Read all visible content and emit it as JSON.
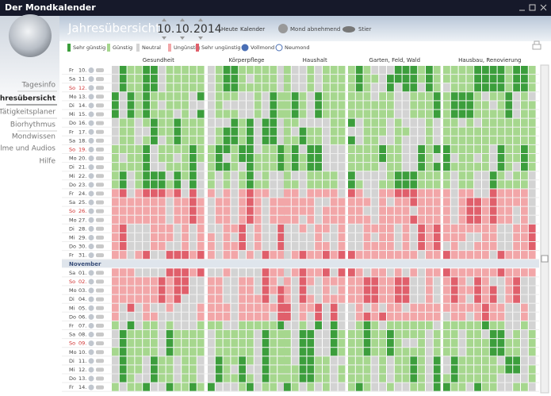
{
  "window_title": "Der Mondkalender",
  "nav": [
    "Tagesinfo",
    "Jahresübersicht",
    "Tätigkeitsplaner",
    "Biorhythmus",
    "Mondwissen",
    "Filme und Audios",
    "Hilfe"
  ],
  "header": {
    "title": "Jahresübersicht",
    "day": "10.",
    "month": "10.",
    "year": "2014",
    "today": "Heute",
    "calendar": "Kalender",
    "moon": "Mond abnehmend",
    "sign": "Stier"
  },
  "legend": [
    {
      "label": "Sehr günstig",
      "color": "#3c9e3c"
    },
    {
      "label": "Günstig",
      "color": "#a6d78e"
    },
    {
      "label": "Neutral",
      "color": "#d3d3d3"
    },
    {
      "label": "Ungünstig",
      "color": "#f2a6a8"
    },
    {
      "label": "Sehr ungünstig",
      "color": "#e05f6b"
    },
    {
      "label": "Vollmond",
      "color": "#4a6fb5"
    },
    {
      "label": "Neumond",
      "color": "#ffffff"
    }
  ],
  "columns": [
    "Gesundheit",
    "Körperpflege",
    "Haushalt",
    "Garten, Feld, Wald",
    "Hausbau, Renovierung"
  ],
  "days_a": [
    {
      "wd": "Fr",
      "d": "10."
    },
    {
      "wd": "Sa",
      "d": "11."
    },
    {
      "wd": "So",
      "d": "12."
    },
    {
      "wd": "Mo",
      "d": "13."
    },
    {
      "wd": "Di",
      "d": "14."
    },
    {
      "wd": "Mi",
      "d": "15."
    },
    {
      "wd": "Do",
      "d": "16."
    },
    {
      "wd": "Fr",
      "d": "17."
    },
    {
      "wd": "Sa",
      "d": "18."
    },
    {
      "wd": "So",
      "d": "19."
    },
    {
      "wd": "Mo",
      "d": "20."
    },
    {
      "wd": "Di",
      "d": "21."
    },
    {
      "wd": "Mi",
      "d": "22."
    },
    {
      "wd": "Do",
      "d": "23."
    },
    {
      "wd": "Fr",
      "d": "24."
    },
    {
      "wd": "Sa",
      "d": "25."
    },
    {
      "wd": "So",
      "d": "26."
    },
    {
      "wd": "Mo",
      "d": "27."
    },
    {
      "wd": "Di",
      "d": "28."
    },
    {
      "wd": "Mi",
      "d": "29."
    },
    {
      "wd": "Do",
      "d": "30."
    },
    {
      "wd": "Fr",
      "d": "31."
    }
  ],
  "month_label": "November",
  "days_b": [
    {
      "wd": "Sa",
      "d": "01."
    },
    {
      "wd": "So",
      "d": "02."
    },
    {
      "wd": "Mo",
      "d": "03."
    },
    {
      "wd": "Di",
      "d": "04."
    },
    {
      "wd": "Mi",
      "d": "05."
    },
    {
      "wd": "Do",
      "d": "06."
    },
    {
      "wd": "Fr",
      "d": "07."
    },
    {
      "wd": "Sa",
      "d": "08."
    },
    {
      "wd": "So",
      "d": "09."
    },
    {
      "wd": "Mo",
      "d": "10."
    },
    {
      "wd": "Di",
      "d": "11."
    },
    {
      "wd": "Mi",
      "d": "12."
    },
    {
      "wd": "Do",
      "d": "13."
    },
    {
      "wd": "Fr",
      "d": "14."
    }
  ]
}
